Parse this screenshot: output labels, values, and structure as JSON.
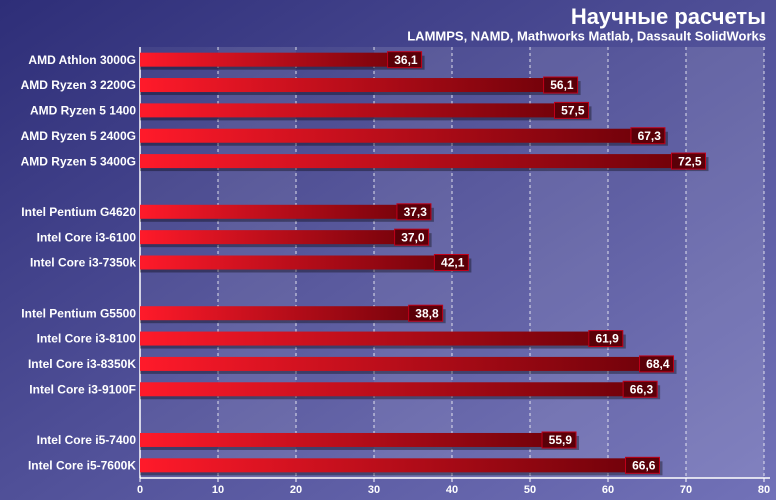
{
  "chart_data": {
    "type": "bar",
    "orientation": "horizontal",
    "title": "Научные расчеты",
    "subtitle": "LAMMPS, NAMD, Mathworks Matlab, Dassault SolidWorks",
    "categories": [
      "AMD Athlon 3000G",
      "AMD Ryzen 3 2200G",
      "AMD Ryzen 5 1400",
      "AMD Ryzen 5 2400G",
      "AMD Ryzen 5 3400G",
      null,
      "Intel Pentium G4620",
      "Intel Core i3-6100",
      "Intel Core i3-7350k",
      null,
      "Intel Pentium G5500",
      "Intel Core i3-8100",
      "Intel Core i3-8350K",
      "Intel Core i3-9100F",
      null,
      "Intel Core i5-7400",
      "Intel Core i5-7600K"
    ],
    "values": [
      36.1,
      56.1,
      57.5,
      67.3,
      72.5,
      null,
      37.3,
      37.0,
      42.1,
      null,
      38.8,
      61.9,
      68.4,
      66.3,
      null,
      55.9,
      66.6
    ],
    "value_labels": [
      "36,1",
      "56,1",
      "57,5",
      "67,3",
      "72,5",
      null,
      "37,3",
      "37,0",
      "42,1",
      null,
      "38,8",
      "61,9",
      "68,4",
      "66,3",
      null,
      "55,9",
      "66,6"
    ],
    "color": "#e8001a",
    "xlim": [
      0,
      80
    ],
    "xticks": [
      0,
      10,
      20,
      30,
      40,
      50,
      60,
      70,
      80
    ],
    "grid": true
  }
}
